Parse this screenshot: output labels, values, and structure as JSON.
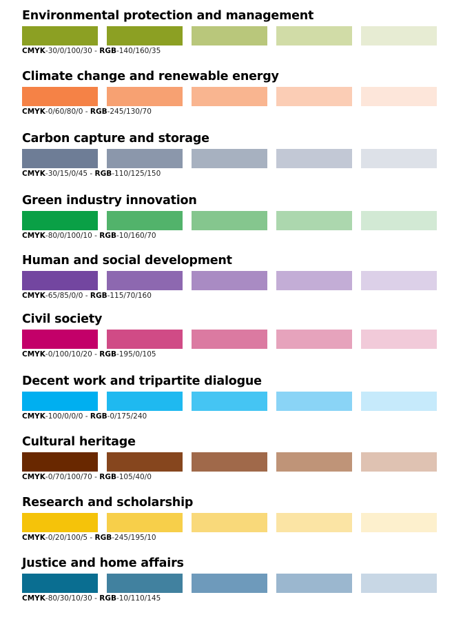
{
  "sections": [
    {
      "title": "Environmental protection and management",
      "cmyk_label": "CMYK",
      "cmyk": "-30/0/100/30",
      "sep": " - ",
      "rgb_label": "RGB",
      "rgb": "-140/160/35",
      "colors": [
        "#8ca023",
        "#8ca023",
        "#b9c77b",
        "#d1dca7",
        "#e7ecd3"
      ]
    },
    {
      "title": "Climate change and renewable energy",
      "cmyk_label": "CMYK",
      "cmyk": "-0/60/80/0",
      "sep": " - ",
      "rgb_label": "RGB",
      "rgb": "-245/130/70",
      "colors": [
        "#f58246",
        "#f7a172",
        "#f9b590",
        "#fbcdb5",
        "#fde6da"
      ]
    },
    {
      "title": "Carbon capture and storage",
      "cmyk_label": "CMYK",
      "cmyk": "-30/15/0/45",
      "sep": " - ",
      "rgb_label": "RGB",
      "rgb": "-110/125/150",
      "colors": [
        "#6e7d96",
        "#8b97ab",
        "#a7b1c0",
        "#c2c8d5",
        "#dde1e8"
      ]
    },
    {
      "title": "Green industry innovation",
      "cmyk_label": "CMYK",
      "cmyk": "-80/0/100/10",
      "sep": " - ",
      "rgb_label": "RGB",
      "rgb": "-10/160/70",
      "colors": [
        "#0aa046",
        "#52b36b",
        "#85c68e",
        "#acd7ae",
        "#d2e9d4"
      ]
    },
    {
      "title": "Human and social development",
      "cmyk_label": "CMYK",
      "cmyk": "-65/85/0/0",
      "sep": " - ",
      "rgb_label": "RGB",
      "rgb": "-115/70/160",
      "colors": [
        "#7346a0",
        "#8d68b0",
        "#a98bc3",
        "#c3add6",
        "#dcd0e8"
      ]
    },
    {
      "title": "Civil society",
      "cmyk_label": "CMYK",
      "cmyk": "-0/100/10/20",
      "sep": " - ",
      "rgb_label": "RGB",
      "rgb": "-195/0/105",
      "colors": [
        "#c30069",
        "#d04b86",
        "#db7aa1",
        "#e6a3bc",
        "#f1cad9"
      ]
    },
    {
      "title": "Decent work and tripartite dialogue",
      "cmyk_label": "CMYK",
      "cmyk": "-100/0/0/0",
      "sep": " - ",
      "rgb_label": "RGB",
      "rgb": "-0/175/240",
      "colors": [
        "#00aff0",
        "#1fb9f0",
        "#45c5f3",
        "#8ad4f6",
        "#c6eafb"
      ]
    },
    {
      "title": "Cultural heritage",
      "cmyk_label": "CMYK",
      "cmyk": "-0/70/100/70",
      "sep": " - ",
      "rgb_label": "RGB",
      "rgb": "-105/40/0",
      "colors": [
        "#692800",
        "#86461e",
        "#a0694a",
        "#bf9478",
        "#dfc2b2"
      ]
    },
    {
      "title": "Research and scholarship",
      "cmyk_label": "CMYK",
      "cmyk": "-0/20/100/5",
      "sep": " - ",
      "rgb_label": "RGB",
      "rgb": "-245/195/10",
      "colors": [
        "#f5c30a",
        "#f7cf4a",
        "#f9d97a",
        "#fbe4a4",
        "#fdf0cd"
      ]
    },
    {
      "title": "Justice and home affairs",
      "cmyk_label": "CMYK",
      "cmyk": "-80/30/10/30",
      "sep": " - ",
      "rgb_label": "RGB",
      "rgb": "-10/110/145",
      "colors": [
        "#0a6e91",
        "#41819f",
        "#6e9abb",
        "#9bb7cf",
        "#c8d7e5"
      ]
    }
  ]
}
